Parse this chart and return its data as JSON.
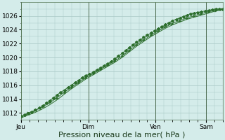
{
  "background_color": "#d4ecea",
  "plot_bg_color": "#d4ecea",
  "grid_color": "#a8c8c4",
  "line_color": "#2d6e2d",
  "ylim": [
    1011,
    1028
  ],
  "xlim": [
    0,
    168
  ],
  "yticks": [
    1012,
    1014,
    1016,
    1018,
    1020,
    1022,
    1024,
    1026
  ],
  "xlabel": "Pression niveau de la mer( hPa )",
  "xlabel_fontsize": 8,
  "tick_fontsize": 6.5,
  "day_labels": [
    "Jeu",
    "Dim",
    "Ven",
    "Sam"
  ],
  "day_positions": [
    0,
    56,
    112,
    154
  ],
  "line1_x": [
    0,
    3,
    6,
    9,
    12,
    15,
    18,
    21,
    24,
    27,
    30,
    33,
    36,
    39,
    42,
    45,
    48,
    51,
    54,
    57,
    60,
    63,
    66,
    69,
    72,
    75,
    78,
    81,
    84,
    87,
    90,
    93,
    96,
    99,
    102,
    105,
    108,
    111,
    114,
    117,
    120,
    123,
    126,
    129,
    132,
    135,
    138,
    141,
    144,
    147,
    150,
    153,
    156,
    159,
    162,
    165,
    168
  ],
  "line1_y": [
    1011.5,
    1011.7,
    1011.9,
    1012.1,
    1012.4,
    1012.7,
    1013.0,
    1013.4,
    1013.8,
    1014.2,
    1014.6,
    1015.0,
    1015.3,
    1015.7,
    1016.0,
    1016.4,
    1016.7,
    1017.1,
    1017.4,
    1017.6,
    1017.9,
    1018.2,
    1018.5,
    1018.8,
    1019.1,
    1019.4,
    1019.8,
    1020.2,
    1020.6,
    1021.0,
    1021.4,
    1021.8,
    1022.2,
    1022.5,
    1022.9,
    1023.2,
    1023.5,
    1023.8,
    1024.1,
    1024.4,
    1024.7,
    1025.0,
    1025.3,
    1025.5,
    1025.7,
    1025.9,
    1026.1,
    1026.3,
    1026.4,
    1026.5,
    1026.6,
    1026.7,
    1026.8,
    1026.9,
    1027.0,
    1027.0,
    1027.0
  ],
  "line2_x": [
    0,
    6,
    12,
    18,
    24,
    30,
    36,
    42,
    48,
    54,
    60,
    66,
    72,
    78,
    84,
    90,
    96,
    102,
    108,
    114,
    120,
    126,
    132,
    138,
    144,
    150,
    156,
    162,
    168
  ],
  "line2_y": [
    1011.5,
    1012.0,
    1012.4,
    1012.9,
    1013.5,
    1014.2,
    1015.0,
    1015.7,
    1016.4,
    1017.1,
    1017.7,
    1018.3,
    1018.9,
    1019.5,
    1020.2,
    1021.0,
    1021.8,
    1022.5,
    1023.2,
    1023.8,
    1024.4,
    1024.9,
    1025.3,
    1025.7,
    1026.0,
    1026.3,
    1026.6,
    1026.8,
    1027.0
  ],
  "line3_x": [
    0,
    6,
    12,
    18,
    24,
    30,
    36,
    42,
    48,
    54,
    60,
    66,
    72,
    78,
    84,
    90,
    96,
    102,
    108,
    114,
    120,
    126,
    132,
    138,
    144,
    150,
    156,
    162,
    168
  ],
  "line3_y": [
    1011.3,
    1011.7,
    1012.1,
    1012.6,
    1013.2,
    1013.9,
    1014.7,
    1015.5,
    1016.2,
    1016.9,
    1017.5,
    1018.1,
    1018.7,
    1019.3,
    1020.0,
    1020.8,
    1021.6,
    1022.3,
    1023.0,
    1023.6,
    1024.2,
    1024.7,
    1025.1,
    1025.5,
    1025.8,
    1026.1,
    1026.4,
    1026.7,
    1026.9
  ]
}
